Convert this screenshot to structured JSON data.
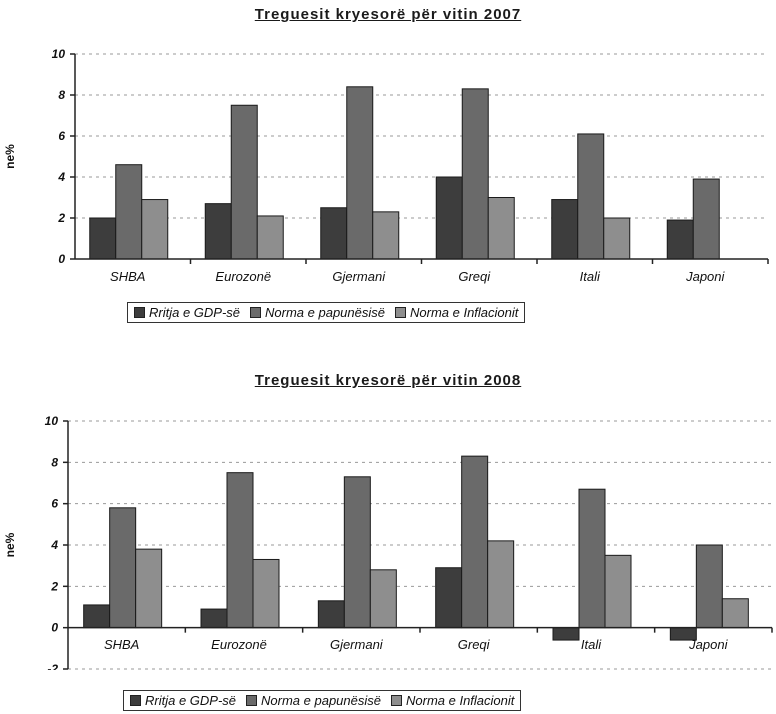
{
  "colors": {
    "gdp": "#3d3d3d",
    "unemployment": "#6a6a6a",
    "inflation": "#8e8e8e"
  },
  "chart_data": [
    {
      "type": "bar",
      "title": "Treguesit kryesorë për vitin 2007",
      "ylabel": "ne%",
      "ylim": [
        0,
        10
      ],
      "yticks": [
        0,
        2,
        4,
        6,
        8,
        10
      ],
      "grid": true,
      "legend_position": "bottom",
      "categories": [
        "SHBA",
        "Eurozonë",
        "Gjermani",
        "Greqi",
        "Itali",
        "Japoni"
      ],
      "series": [
        {
          "name": "Rritja e GDP-së",
          "values": [
            2.0,
            2.7,
            2.5,
            4.0,
            2.9,
            1.9
          ]
        },
        {
          "name": "Norma e papunësisë",
          "values": [
            4.6,
            7.5,
            8.4,
            8.3,
            6.1,
            3.9
          ]
        },
        {
          "name": "Norma e Inflacionit",
          "values": [
            2.9,
            2.1,
            2.3,
            3.0,
            2.0,
            0.0
          ]
        }
      ]
    },
    {
      "type": "bar",
      "title": "Treguesit kryesorë për vitin 2008",
      "ylabel": "ne%",
      "ylim": [
        -2,
        10
      ],
      "yticks": [
        -2,
        0,
        2,
        4,
        6,
        8,
        10
      ],
      "grid": true,
      "legend_position": "bottom",
      "categories": [
        "SHBA",
        "Eurozonë",
        "Gjermani",
        "Greqi",
        "Itali",
        "Japoni"
      ],
      "series": [
        {
          "name": "Rritja e GDP-së",
          "values": [
            1.1,
            0.9,
            1.3,
            2.9,
            -0.6,
            -0.6
          ]
        },
        {
          "name": "Norma e papunësisë",
          "values": [
            5.8,
            7.5,
            7.3,
            8.3,
            6.7,
            4.0
          ]
        },
        {
          "name": "Norma e Inflacionit",
          "values": [
            3.8,
            3.3,
            2.8,
            4.2,
            3.5,
            1.4
          ]
        }
      ]
    }
  ]
}
